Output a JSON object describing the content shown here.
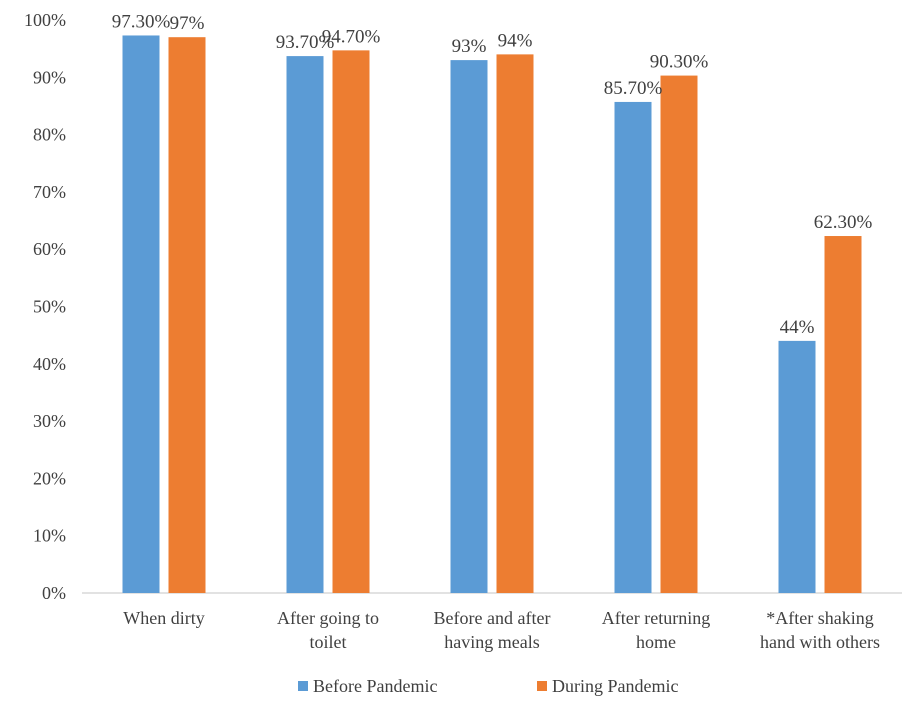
{
  "chart_data": {
    "type": "bar",
    "categories": [
      [
        "When dirty"
      ],
      [
        "After going to",
        "toilet"
      ],
      [
        "Before and after",
        "having meals"
      ],
      [
        "After returning",
        "home"
      ],
      [
        "*After shaking",
        "hand with others"
      ]
    ],
    "series": [
      {
        "name": "Before Pandemic",
        "color": "#5B9BD5",
        "values": [
          97.3,
          93.7,
          93,
          85.7,
          44
        ],
        "labels": [
          "97.30%",
          "93.70%",
          "93%",
          "85.70%",
          "44%"
        ]
      },
      {
        "name": "During Pandemic",
        "color": "#ED7D31",
        "values": [
          97,
          94.7,
          94,
          90.3,
          62.3
        ],
        "labels": [
          "97%",
          "94.70%",
          "94%",
          "90.30%",
          "62.30%"
        ]
      }
    ],
    "yticks": [
      "0%",
      "10%",
      "20%",
      "30%",
      "40%",
      "50%",
      "60%",
      "70%",
      "80%",
      "90%",
      "100%"
    ],
    "ylim": [
      0,
      100
    ],
    "grid": false,
    "legend": "bottom-center",
    "title": "",
    "xlabel": "",
    "ylabel": ""
  }
}
